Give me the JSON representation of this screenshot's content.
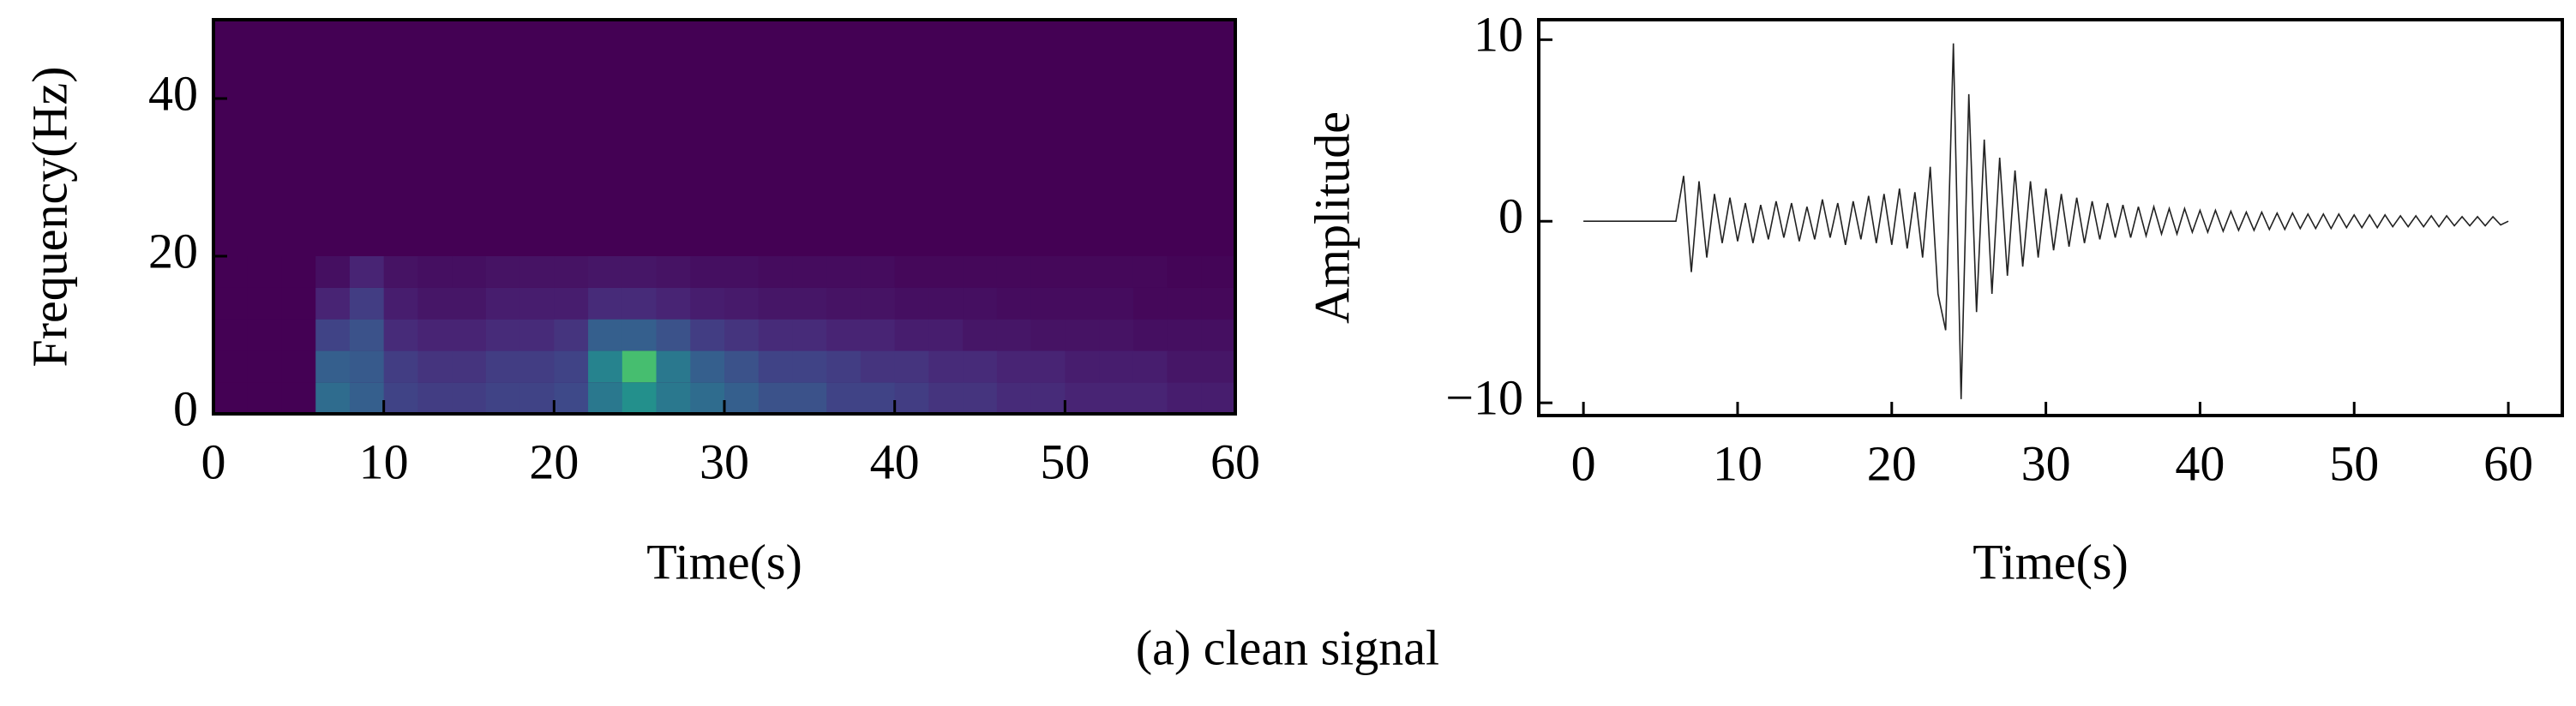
{
  "caption": "(a)  clean signal",
  "chart_data": [
    {
      "type": "heatmap",
      "xlabel": "Time(s)",
      "ylabel": "Frequency(Hz)",
      "xlim": [
        0,
        60
      ],
      "ylim": [
        0,
        50
      ],
      "xticks": [
        0,
        10,
        20,
        30,
        40,
        50,
        60
      ],
      "yticks": [
        0,
        20,
        40
      ],
      "xedges": [
        0,
        2,
        4,
        6,
        8,
        10,
        12,
        14,
        16,
        18,
        20,
        22,
        24,
        26,
        28,
        30,
        32,
        34,
        36,
        38,
        40,
        42,
        44,
        46,
        48,
        50,
        52,
        54,
        56,
        58,
        60
      ],
      "yedges": [
        0,
        4,
        8,
        12,
        16,
        20
      ],
      "values": [
        [
          0,
          0,
          0,
          0.35,
          0.3,
          0.2,
          0.18,
          0.18,
          0.2,
          0.2,
          0.22,
          0.4,
          0.5,
          0.4,
          0.35,
          0.3,
          0.25,
          0.25,
          0.2,
          0.2,
          0.18,
          0.15,
          0.15,
          0.12,
          0.12,
          0.1,
          0.1,
          0.1,
          0.08,
          0.08
        ],
        [
          0,
          0,
          0,
          0.3,
          0.28,
          0.18,
          0.15,
          0.15,
          0.18,
          0.18,
          0.2,
          0.45,
          0.7,
          0.4,
          0.3,
          0.25,
          0.2,
          0.2,
          0.18,
          0.15,
          0.15,
          0.12,
          0.12,
          0.1,
          0.1,
          0.08,
          0.08,
          0.08,
          0.06,
          0.06
        ],
        [
          0,
          0,
          0,
          0.2,
          0.25,
          0.12,
          0.1,
          0.1,
          0.12,
          0.12,
          0.15,
          0.3,
          0.3,
          0.25,
          0.18,
          0.15,
          0.12,
          0.12,
          0.1,
          0.1,
          0.08,
          0.08,
          0.06,
          0.06,
          0.05,
          0.05,
          0.05,
          0.04,
          0.04,
          0.04
        ],
        [
          0,
          0,
          0,
          0.1,
          0.18,
          0.08,
          0.06,
          0.06,
          0.08,
          0.08,
          0.08,
          0.12,
          0.12,
          0.1,
          0.08,
          0.07,
          0.06,
          0.06,
          0.05,
          0.05,
          0.04,
          0.04,
          0.04,
          0.03,
          0.03,
          0.03,
          0.03,
          0.02,
          0.02,
          0.02
        ],
        [
          0,
          0,
          0,
          0.04,
          0.1,
          0.05,
          0.04,
          0.04,
          0.05,
          0.05,
          0.05,
          0.06,
          0.06,
          0.05,
          0.04,
          0.04,
          0.03,
          0.03,
          0.03,
          0.03,
          0.02,
          0.02,
          0.02,
          0.02,
          0.02,
          0.02,
          0.02,
          0.02,
          0.01,
          0.01
        ]
      ]
    },
    {
      "type": "line",
      "xlabel": "Time(s)",
      "ylabel": "Amplitude",
      "xlim": [
        -2.9,
        63.5
      ],
      "ylim": [
        -10.7,
        11.1
      ],
      "xticks": [
        0,
        10,
        20,
        30,
        40,
        50,
        60
      ],
      "yticks": [
        {
          "value": -10,
          "label": "−10"
        },
        0,
        10
      ],
      "x": [
        0,
        0.5,
        1,
        1.5,
        2,
        2.5,
        3,
        3.5,
        4,
        4.5,
        5,
        5.5,
        6,
        6.5,
        7,
        7.5,
        8,
        8.5,
        9,
        9.5,
        10,
        10.5,
        11,
        11.5,
        12,
        12.5,
        13,
        13.5,
        14,
        14.5,
        15,
        15.5,
        16,
        16.5,
        17,
        17.5,
        18,
        18.5,
        19,
        19.5,
        20,
        20.5,
        21,
        21.5,
        22,
        22.5,
        23,
        23.5,
        24,
        24.5,
        25,
        25.5,
        26,
        26.5,
        27,
        27.5,
        28,
        28.5,
        29,
        29.5,
        30,
        30.5,
        31,
        31.5,
        32,
        32.5,
        33,
        33.5,
        34,
        34.5,
        35,
        35.5,
        36,
        36.5,
        37,
        37.5,
        38,
        38.5,
        39,
        39.5,
        40,
        40.5,
        41,
        41.5,
        42,
        42.5,
        43,
        43.5,
        44,
        44.5,
        45,
        45.5,
        46,
        46.5,
        47,
        47.5,
        48,
        48.5,
        49,
        49.5,
        50,
        50.5,
        51,
        51.5,
        52,
        52.5,
        53,
        53.5,
        54,
        54.5,
        55,
        55.5,
        56,
        56.5,
        57,
        57.5,
        58,
        58.5,
        59,
        59.5,
        60
      ],
      "series": [
        {
          "color": "#222222",
          "values": [
            0,
            0,
            0,
            0,
            0,
            0,
            0,
            0,
            0,
            0,
            0,
            0,
            0,
            2.5,
            -2.8,
            2.2,
            -2,
            1.5,
            -1.2,
            1.3,
            -1.1,
            1,
            -1.2,
            0.9,
            -1,
            1.1,
            -0.9,
            1,
            -1.1,
            0.8,
            -1,
            1.2,
            -0.9,
            1,
            -1.3,
            1.1,
            -1,
            1.4,
            -1.2,
            1.5,
            -1.3,
            1.8,
            -1.5,
            1.6,
            -2,
            3,
            -4,
            -6,
            9.8,
            -9.8,
            7,
            -5,
            4.5,
            -4,
            3.5,
            -3,
            2.8,
            -2.5,
            2.2,
            -2,
            1.8,
            -1.6,
            1.5,
            -1.4,
            1.3,
            -1.2,
            1.1,
            -1,
            1,
            -0.9,
            0.9,
            -0.9,
            0.8,
            -0.8,
            0.8,
            -0.7,
            0.7,
            -0.7,
            0.7,
            -0.6,
            0.6,
            -0.6,
            0.6,
            -0.55,
            0.55,
            -0.5,
            0.5,
            -0.5,
            0.5,
            -0.45,
            0.45,
            -0.45,
            0.45,
            -0.4,
            0.4,
            -0.4,
            0.4,
            -0.4,
            0.4,
            -0.35,
            0.35,
            -0.35,
            0.35,
            -0.35,
            0.35,
            -0.3,
            0.3,
            -0.3,
            0.3,
            -0.3,
            0.3,
            -0.3,
            0.3,
            -0.25,
            0.25,
            -0.25,
            0.25,
            -0.25,
            0.25,
            -0.2,
            0
          ]
        }
      ]
    }
  ]
}
